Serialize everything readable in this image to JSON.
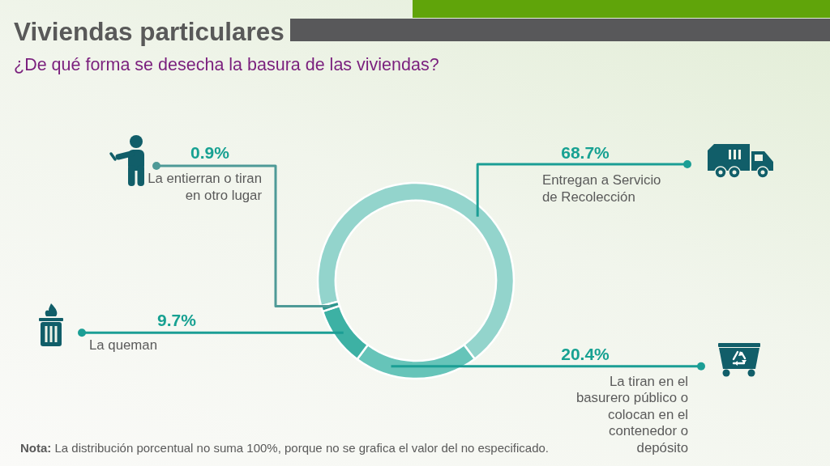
{
  "chart_data": {
    "type": "donut",
    "title": "Viviendas particulares",
    "subtitle": "¿De qué forma se desecha la basura de las viviendas?",
    "categories": [
      "Entregan a Servicio de Recolección",
      "La tiran en el basurero público o colocan en el contenedor o depósito",
      "La queman",
      "La entierran o tiran en otro lugar"
    ],
    "values": [
      68.7,
      20.4,
      9.7,
      0.9
    ],
    "colors": [
      "#93d4cc",
      "#66c4b9",
      "#3db1a4",
      "#2b968d"
    ],
    "value_labels": [
      "68.7%",
      "20.4%",
      "9.7%",
      "0.9%"
    ],
    "annotations": [
      "Nota: La distribución porcentual no suma 100%, porque no se grafica el valor del no especificado."
    ]
  }
}
